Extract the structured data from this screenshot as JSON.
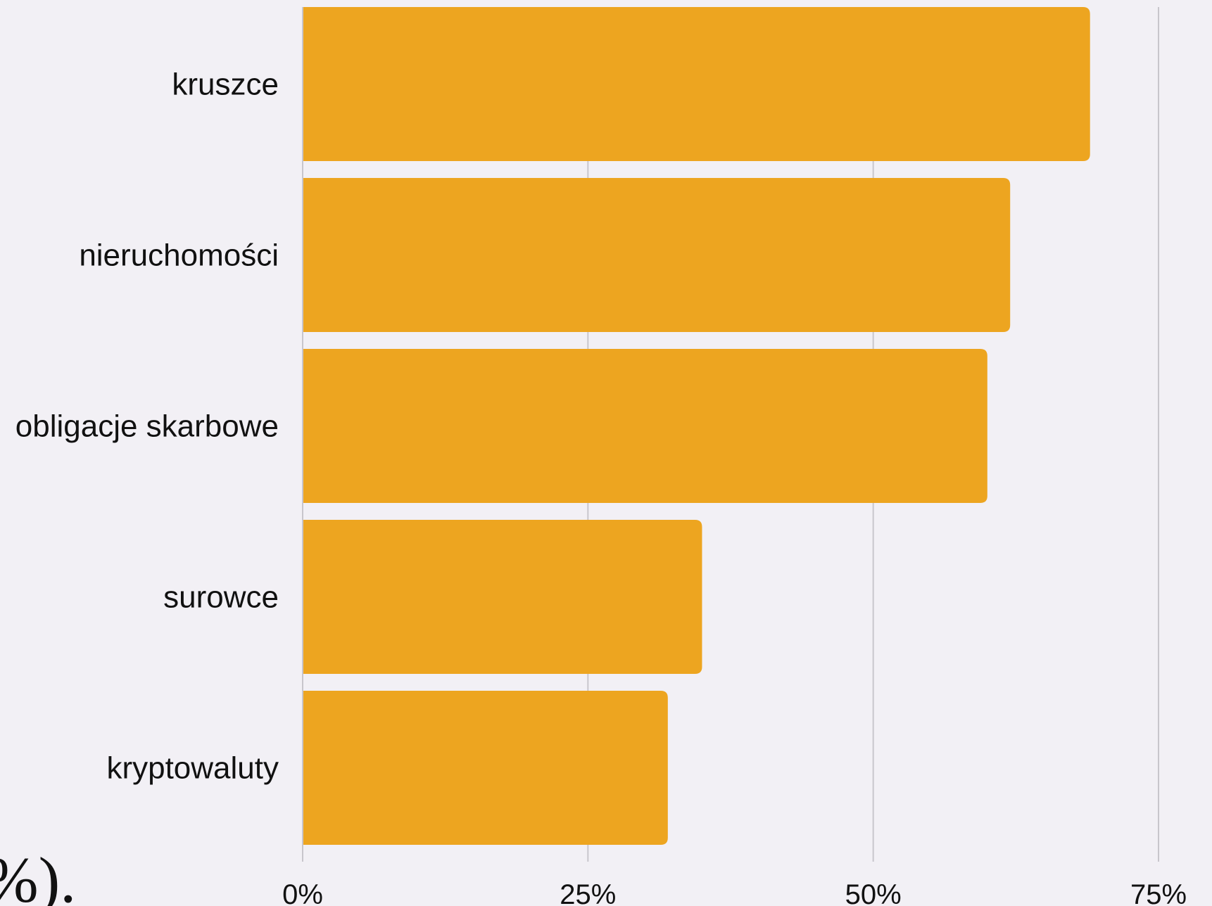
{
  "chart_data": {
    "type": "bar",
    "orientation": "horizontal",
    "title": "",
    "xlabel": "",
    "ylabel": "",
    "categories": [
      "kruszce",
      "nieruchomości",
      "obligacje skarbowe",
      "surowce",
      "kryptowaluty"
    ],
    "values": [
      69,
      62,
      60,
      35,
      32
    ],
    "xlim": [
      0,
      75
    ],
    "x_ticks": [
      0,
      25,
      50,
      75
    ],
    "x_tick_labels": [
      "0%",
      "25%",
      "50%",
      "75%"
    ],
    "grid": "vertical",
    "legend": "none",
    "bar_color": "#eda520",
    "background_color": "#f2f0f5",
    "partial_text": "%)."
  }
}
